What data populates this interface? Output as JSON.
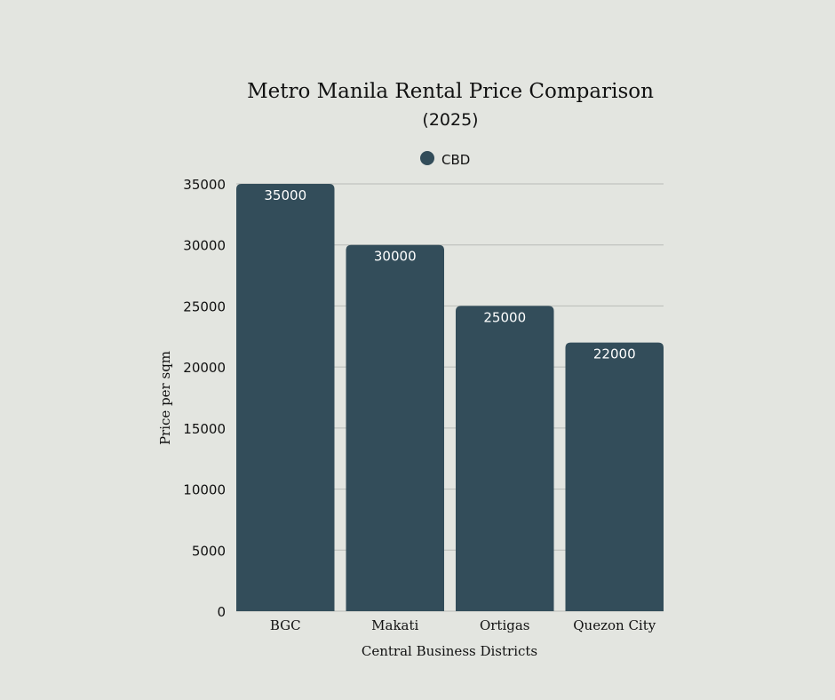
{
  "chart_data": {
    "type": "bar",
    "title": "Metro Manila Rental Price Comparison",
    "subtitle": "(2025)",
    "xlabel": "Central Business Districts",
    "ylabel": "Price per sqm",
    "categories": [
      "BGC",
      "Makati",
      "Ortigas",
      "Quezon City"
    ],
    "series": [
      {
        "name": "CBD",
        "values": [
          35000,
          30000,
          25000,
          22000
        ]
      }
    ],
    "ylim": [
      0,
      35000
    ],
    "yticks": [
      0,
      5000,
      10000,
      15000,
      20000,
      25000,
      30000,
      35000
    ],
    "grid": true,
    "legend": "top",
    "colors": {
      "bar": "#334d5a",
      "background": "#e3e5e0",
      "grid": "#b9bcb8",
      "label": "#ffffff"
    }
  }
}
